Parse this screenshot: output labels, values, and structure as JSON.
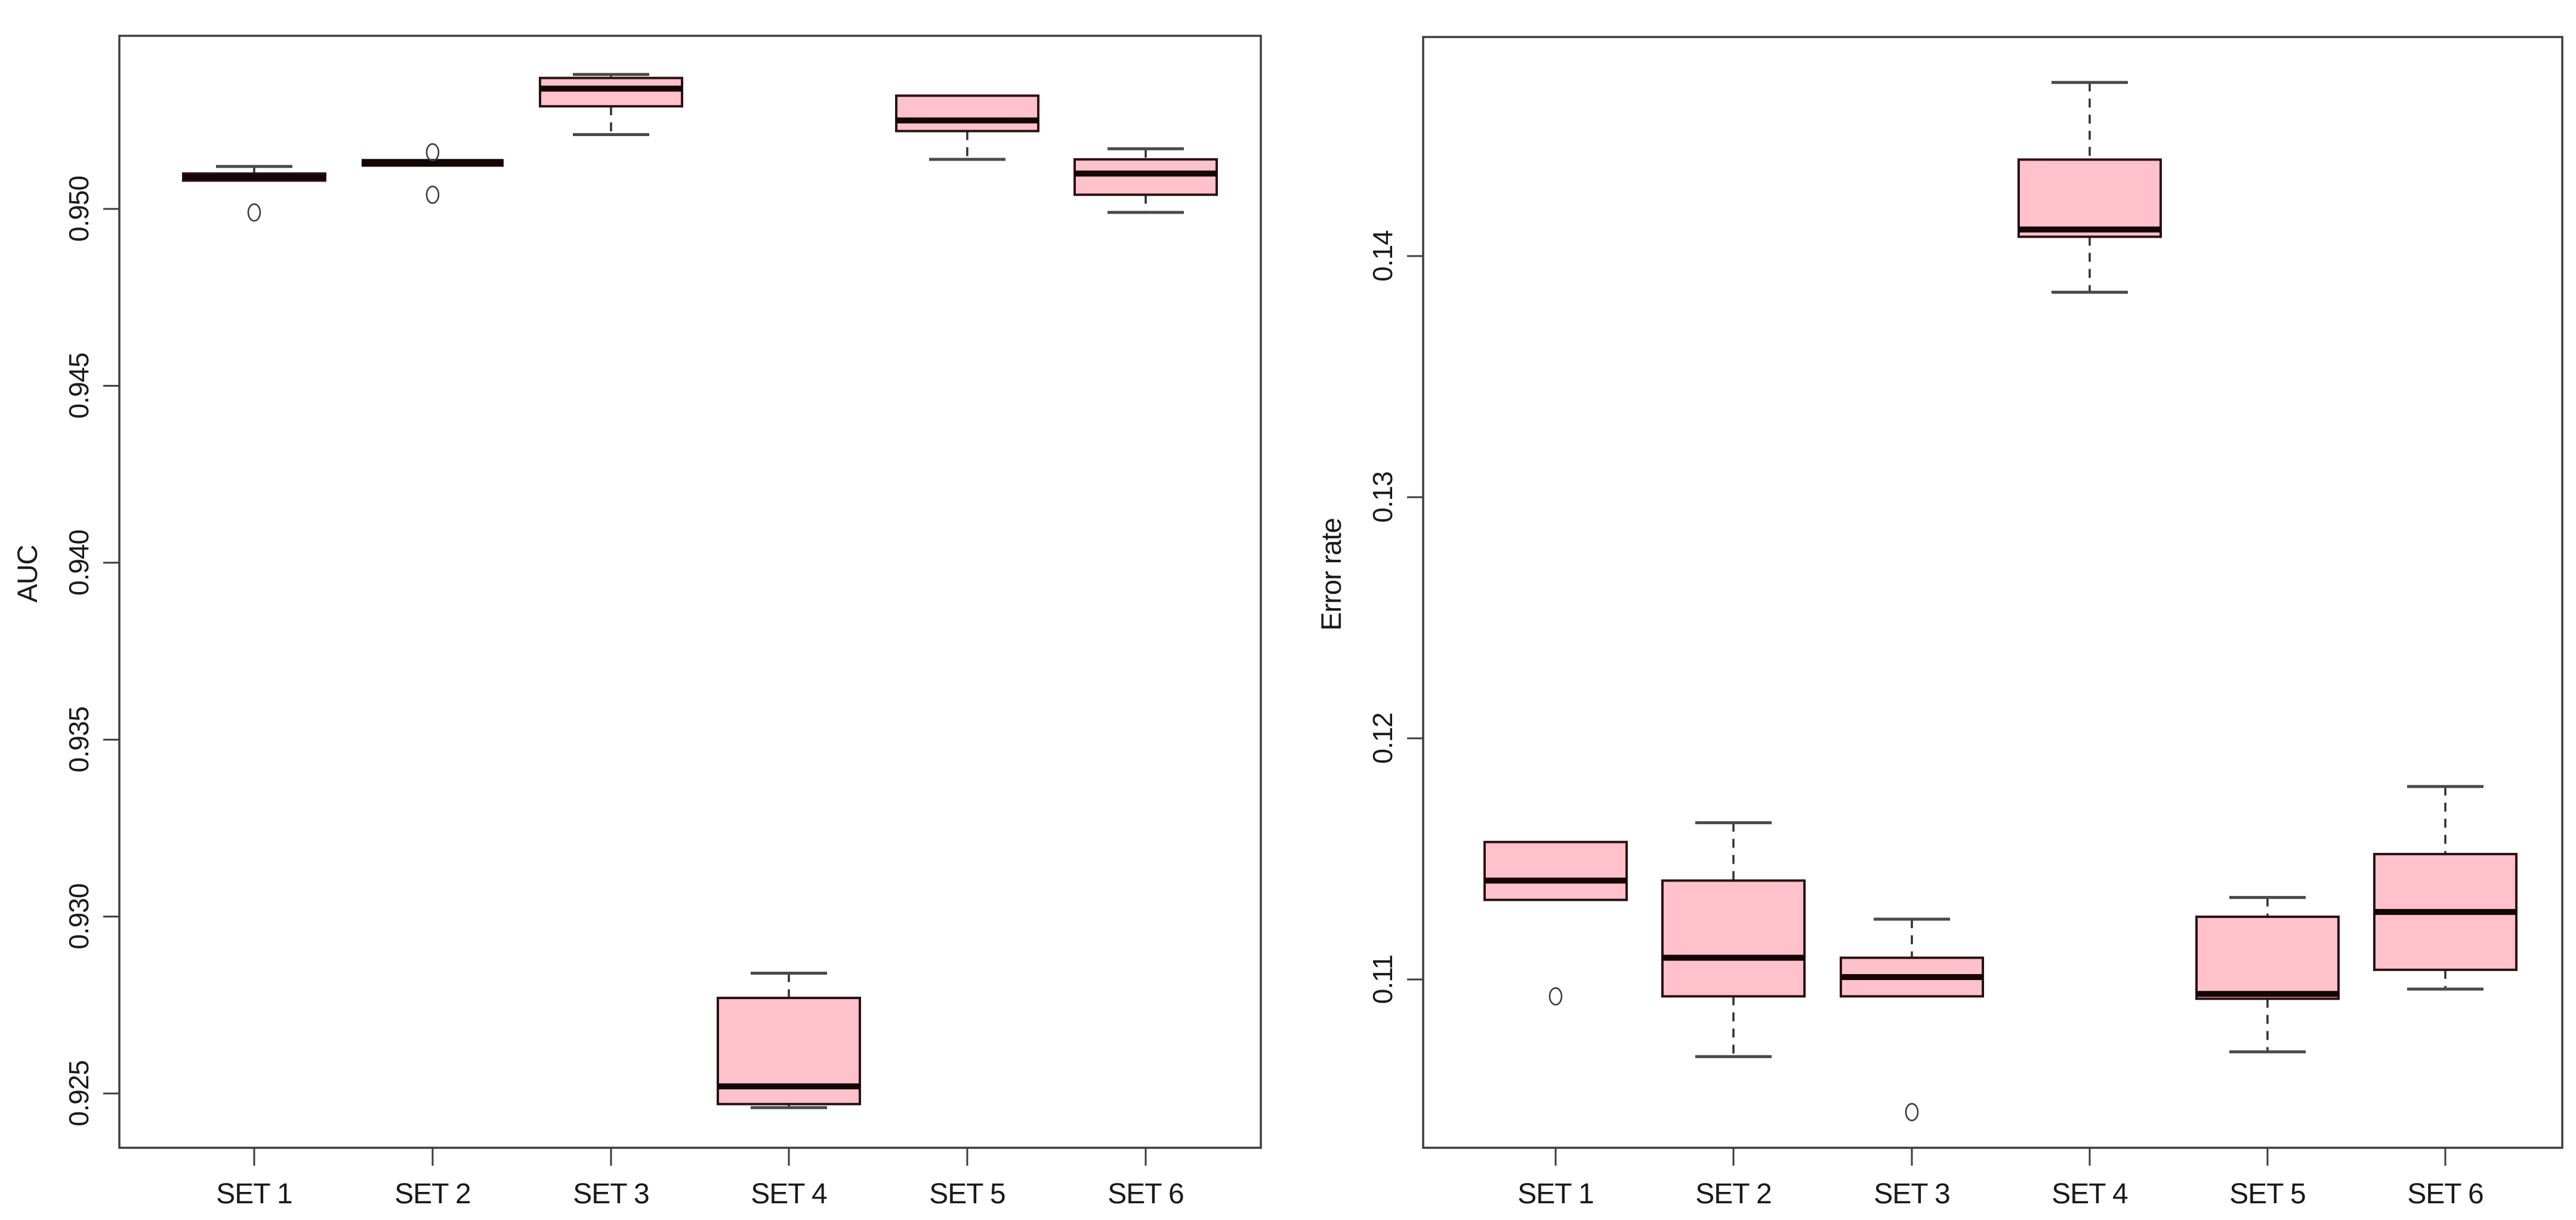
{
  "figure": {
    "background": "#ffffff",
    "box_fill": "#ffc1cc",
    "box_border": "#2a1114",
    "median_color": "#140506",
    "whisker_color": "#2f2f2f",
    "cap_color": "#4a4a4a",
    "outlier_color": "#3c3c3c",
    "frame_color": "#3d3d3d",
    "text_color": "#1a1a1a"
  },
  "chart_data": [
    {
      "type": "boxplot",
      "panel": "left",
      "title": "",
      "xlabel": "",
      "ylabel": "AUC",
      "grid": false,
      "legend": "none",
      "categories": [
        "SET 1",
        "SET 2",
        "SET 3",
        "SET 4",
        "SET 5",
        "SET  6"
      ],
      "yticks": [
        0.925,
        0.93,
        0.935,
        0.94,
        0.945,
        0.95
      ],
      "ytick_labels": [
        "0.925",
        "0.930",
        "0.935",
        "0.940",
        "0.945",
        "0.950"
      ],
      "ylim": [
        0.9235,
        0.9549
      ],
      "boxes": [
        {
          "category": "SET 1",
          "whisker_low": 0.9508,
          "q1": 0.9508,
          "median": 0.9509,
          "q3": 0.951,
          "whisker_high": 0.9512,
          "outliers": [
            0.9499
          ]
        },
        {
          "category": "SET 2",
          "whisker_low": 0.9513,
          "q1": 0.9513,
          "median": 0.9513,
          "q3": 0.9513,
          "whisker_high": 0.9513,
          "outliers": [
            0.9516,
            0.9504
          ]
        },
        {
          "category": "SET 3",
          "whisker_low": 0.9521,
          "q1": 0.9529,
          "median": 0.9534,
          "q3": 0.9537,
          "whisker_high": 0.9538,
          "outliers": []
        },
        {
          "category": "SET 4",
          "whisker_low": 0.9246,
          "q1": 0.9247,
          "median": 0.9252,
          "q3": 0.9277,
          "whisker_high": 0.9284,
          "outliers": []
        },
        {
          "category": "SET 5",
          "whisker_low": 0.9514,
          "q1": 0.9522,
          "median": 0.9525,
          "q3": 0.9532,
          "whisker_high": 0.9532,
          "outliers": []
        },
        {
          "category": "SET  6",
          "whisker_low": 0.9499,
          "q1": 0.9504,
          "median": 0.951,
          "q3": 0.9514,
          "whisker_high": 0.9517,
          "outliers": []
        }
      ]
    },
    {
      "type": "boxplot",
      "panel": "right",
      "title": "",
      "xlabel": "",
      "ylabel": "Error rate",
      "grid": false,
      "legend": "none",
      "categories": [
        "SET 1",
        "SET 2",
        "SET 3",
        "SET 4",
        "SET 5",
        "SET  6"
      ],
      "yticks": [
        0.11,
        0.12,
        0.13,
        0.14
      ],
      "ytick_labels": [
        "0.11",
        "0.12",
        "0.13",
        "0.14"
      ],
      "ylim": [
        0.103,
        0.1491
      ],
      "boxes": [
        {
          "category": "SET 1",
          "whisker_low": 0.1133,
          "q1": 0.1133,
          "median": 0.1141,
          "q3": 0.1157,
          "whisker_high": 0.1157,
          "outliers": [
            0.1093
          ]
        },
        {
          "category": "SET 2",
          "whisker_low": 0.1068,
          "q1": 0.1093,
          "median": 0.1109,
          "q3": 0.1141,
          "whisker_high": 0.1165,
          "outliers": []
        },
        {
          "category": "SET 3",
          "whisker_low": 0.1093,
          "q1": 0.1093,
          "median": 0.1101,
          "q3": 0.1109,
          "whisker_high": 0.1125,
          "outliers": [
            0.1045
          ]
        },
        {
          "category": "SET 4",
          "whisker_low": 0.1385,
          "q1": 0.1408,
          "median": 0.1411,
          "q3": 0.144,
          "whisker_high": 0.1472,
          "outliers": []
        },
        {
          "category": "SET 5",
          "whisker_low": 0.107,
          "q1": 0.1092,
          "median": 0.1094,
          "q3": 0.1126,
          "whisker_high": 0.1134,
          "outliers": []
        },
        {
          "category": "SET  6",
          "whisker_low": 0.1096,
          "q1": 0.1104,
          "median": 0.1128,
          "q3": 0.1152,
          "whisker_high": 0.118,
          "outliers": []
        }
      ]
    }
  ]
}
